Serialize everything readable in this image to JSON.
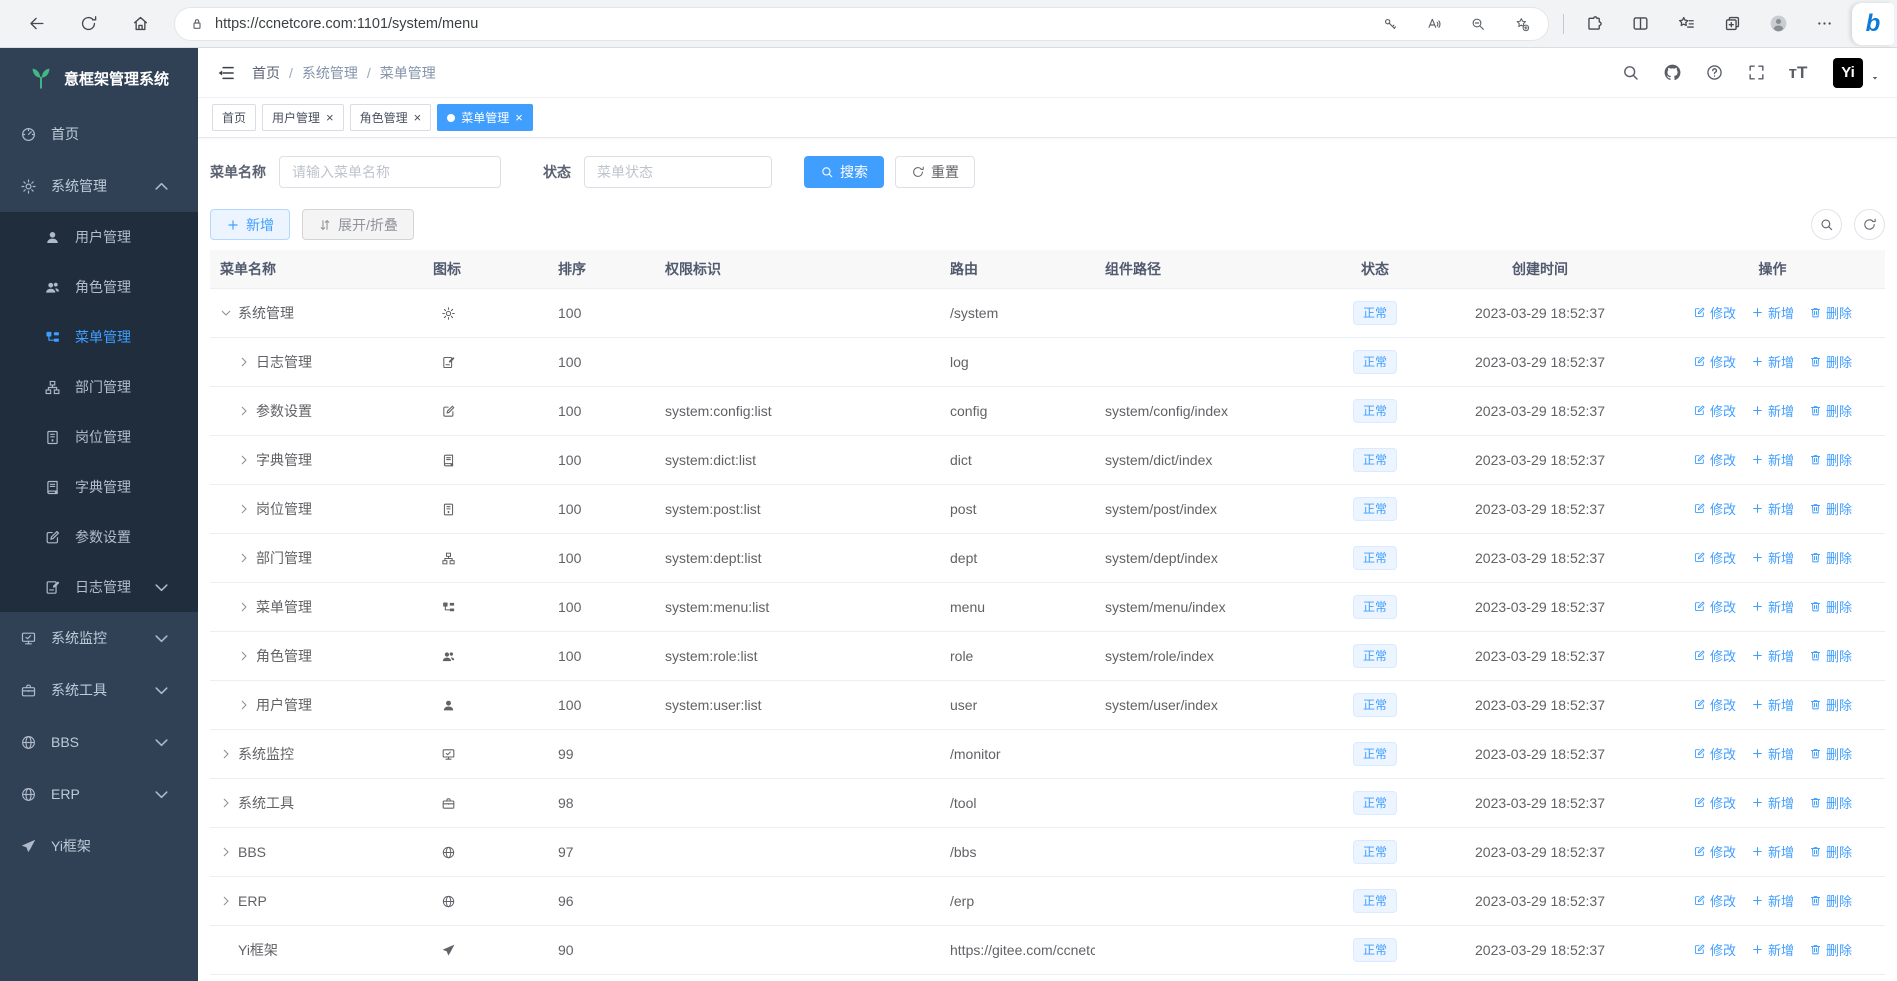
{
  "browser": {
    "url": "https://ccnetcore.com:1101/system/menu",
    "left_icons": [
      {
        "name": "back-icon",
        "icon": "arrow-left"
      },
      {
        "name": "refresh-page-icon",
        "icon": "refresh"
      },
      {
        "name": "home-icon",
        "icon": "home"
      }
    ],
    "lock_icon": "lock",
    "urlbar_icons": [
      {
        "name": "password-key-icon",
        "icon": "key"
      },
      {
        "name": "read-aloud-icon",
        "icon": "readaloud"
      },
      {
        "name": "zoom-out-icon",
        "icon": "zoomout"
      },
      {
        "name": "add-favorite-icon",
        "icon": "star-add"
      }
    ],
    "right_icons": [
      {
        "name": "extensions-icon",
        "icon": "extensions"
      },
      {
        "name": "split-screen-icon",
        "icon": "split"
      },
      {
        "name": "favorites-icon",
        "icon": "hub-star"
      },
      {
        "name": "collections-icon",
        "icon": "collections"
      },
      {
        "name": "profile-avatar-icon",
        "icon": "person"
      },
      {
        "name": "settings-menu-icon",
        "icon": "dots"
      }
    ],
    "bing_label": "b"
  },
  "sidebar": {
    "title": "意框架管理系统",
    "logo_icon": "leaf",
    "items": [
      {
        "label": "首页",
        "icon": "gauge",
        "level": "top"
      },
      {
        "label": "系统管理",
        "icon": "gear",
        "level": "top",
        "chevron": "up",
        "active": false
      },
      {
        "label": "用户管理",
        "icon": "user",
        "level": "sub"
      },
      {
        "label": "角色管理",
        "icon": "users",
        "level": "sub"
      },
      {
        "label": "菜单管理",
        "icon": "tree",
        "level": "sub",
        "active": true
      },
      {
        "label": "部门管理",
        "icon": "dept",
        "level": "sub"
      },
      {
        "label": "岗位管理",
        "icon": "post",
        "level": "sub"
      },
      {
        "label": "字典管理",
        "icon": "dict",
        "level": "sub"
      },
      {
        "label": "参数设置",
        "icon": "editsq",
        "level": "sub"
      },
      {
        "label": "日志管理",
        "icon": "logdoc",
        "level": "sub",
        "chevron": "down"
      },
      {
        "label": "系统监控",
        "icon": "monitor",
        "level": "top",
        "chevron": "down"
      },
      {
        "label": "系统工具",
        "icon": "tool",
        "level": "top",
        "chevron": "down"
      },
      {
        "label": "BBS",
        "icon": "globe",
        "level": "top",
        "chevron": "down"
      },
      {
        "label": "ERP",
        "icon": "globe",
        "level": "top",
        "chevron": "down"
      },
      {
        "label": "Yi框架",
        "icon": "send",
        "level": "top"
      }
    ]
  },
  "header": {
    "breadcrumb": [
      "首页",
      "系统管理",
      "菜单管理"
    ],
    "breadcrumb_separator": "/",
    "icons": [
      {
        "name": "search-icon",
        "icon": "search"
      },
      {
        "name": "github-icon",
        "icon": "github"
      },
      {
        "name": "help-icon",
        "icon": "help"
      },
      {
        "name": "fullscreen-icon",
        "icon": "fullscreen"
      },
      {
        "name": "font-size-icon",
        "glyph": "тT"
      }
    ],
    "avatar_text": "Yi"
  },
  "tabs": {
    "close_glyph": "×",
    "items": [
      {
        "label": "首页",
        "closable": false,
        "active": false
      },
      {
        "label": "用户管理",
        "closable": true,
        "active": false
      },
      {
        "label": "角色管理",
        "closable": true,
        "active": false
      },
      {
        "label": "菜单管理",
        "closable": true,
        "active": true
      }
    ]
  },
  "filters": {
    "name_label": "菜单名称",
    "name_placeholder": "请输入菜单名称",
    "name_value": "",
    "status_label": "状态",
    "status_placeholder": "菜单状态",
    "search_label": "搜索",
    "reset_label": "重置"
  },
  "toolbar": {
    "add_label": "新增",
    "toggle_label": "展开/折叠",
    "right_icons": [
      {
        "name": "show-search-icon",
        "icon": "search"
      },
      {
        "name": "refresh-table-icon",
        "icon": "refresh"
      }
    ]
  },
  "table": {
    "columns": [
      "菜单名称",
      "图标",
      "排序",
      "权限标识",
      "路由",
      "组件路径",
      "状态",
      "创建时间",
      "操作"
    ],
    "actions": {
      "edit": "修改",
      "add": "新增",
      "delete": "删除"
    },
    "rows": [
      {
        "name": "系统管理",
        "icon": "gear",
        "level": 0,
        "expand": "open",
        "order": "100",
        "perm": "",
        "route": "/system",
        "component": "",
        "status": "正常",
        "created": "2023-03-29 18:52:37"
      },
      {
        "name": "日志管理",
        "icon": "logdoc",
        "level": 1,
        "expand": "closed",
        "order": "100",
        "perm": "",
        "route": "log",
        "component": "",
        "status": "正常",
        "created": "2023-03-29 18:52:37"
      },
      {
        "name": "参数设置",
        "icon": "editsq",
        "level": 1,
        "expand": "closed",
        "order": "100",
        "perm": "system:config:list",
        "route": "config",
        "component": "system/config/index",
        "status": "正常",
        "created": "2023-03-29 18:52:37"
      },
      {
        "name": "字典管理",
        "icon": "dict",
        "level": 1,
        "expand": "closed",
        "order": "100",
        "perm": "system:dict:list",
        "route": "dict",
        "component": "system/dict/index",
        "status": "正常",
        "created": "2023-03-29 18:52:37"
      },
      {
        "name": "岗位管理",
        "icon": "post",
        "level": 1,
        "expand": "closed",
        "order": "100",
        "perm": "system:post:list",
        "route": "post",
        "component": "system/post/index",
        "status": "正常",
        "created": "2023-03-29 18:52:37"
      },
      {
        "name": "部门管理",
        "icon": "dept",
        "level": 1,
        "expand": "closed",
        "order": "100",
        "perm": "system:dept:list",
        "route": "dept",
        "component": "system/dept/index",
        "status": "正常",
        "created": "2023-03-29 18:52:37"
      },
      {
        "name": "菜单管理",
        "icon": "tree",
        "level": 1,
        "expand": "closed",
        "order": "100",
        "perm": "system:menu:list",
        "route": "menu",
        "component": "system/menu/index",
        "status": "正常",
        "created": "2023-03-29 18:52:37"
      },
      {
        "name": "角色管理",
        "icon": "users",
        "level": 1,
        "expand": "closed",
        "order": "100",
        "perm": "system:role:list",
        "route": "role",
        "component": "system/role/index",
        "status": "正常",
        "created": "2023-03-29 18:52:37"
      },
      {
        "name": "用户管理",
        "icon": "user",
        "level": 1,
        "expand": "closed",
        "order": "100",
        "perm": "system:user:list",
        "route": "user",
        "component": "system/user/index",
        "status": "正常",
        "created": "2023-03-29 18:52:37"
      },
      {
        "name": "系统监控",
        "icon": "monitor",
        "level": 0,
        "expand": "closed",
        "order": "99",
        "perm": "",
        "route": "/monitor",
        "component": "",
        "status": "正常",
        "created": "2023-03-29 18:52:37"
      },
      {
        "name": "系统工具",
        "icon": "tool",
        "level": 0,
        "expand": "closed",
        "order": "98",
        "perm": "",
        "route": "/tool",
        "component": "",
        "status": "正常",
        "created": "2023-03-29 18:52:37"
      },
      {
        "name": "BBS",
        "icon": "globe",
        "level": 0,
        "expand": "closed",
        "order": "97",
        "perm": "",
        "route": "/bbs",
        "component": "",
        "status": "正常",
        "created": "2023-03-29 18:52:37"
      },
      {
        "name": "ERP",
        "icon": "globe",
        "level": 0,
        "expand": "closed",
        "order": "96",
        "perm": "",
        "route": "/erp",
        "component": "",
        "status": "正常",
        "created": "2023-03-29 18:52:37"
      },
      {
        "name": "Yi框架",
        "icon": "send",
        "level": 0,
        "expand": "leaf",
        "order": "90",
        "perm": "",
        "route": "https://gitee.com/ccnetcore/yi",
        "component": "",
        "status": "正常",
        "created": "2023-03-29 18:52:37"
      }
    ]
  }
}
